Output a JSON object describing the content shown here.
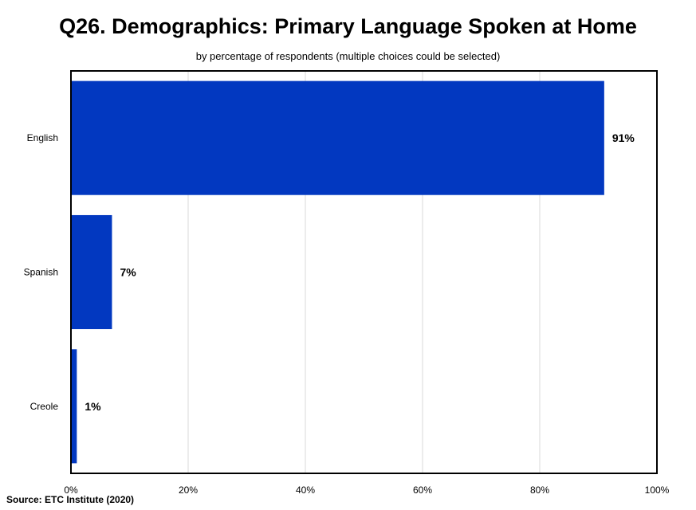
{
  "title": "Q26. Demographics: Primary Language Spoken at Home",
  "subtitle": "by percentage of respondents (multiple choices could be selected)",
  "source": "Source:  ETC Institute (2020)",
  "colors": {
    "bar": "#0238C0",
    "grid": "#d9d9d9",
    "frame": "#000000"
  },
  "chart_data": {
    "type": "bar",
    "orientation": "horizontal",
    "title": "Q26. Demographics: Primary Language Spoken at Home",
    "subtitle": "by percentage of respondents (multiple choices could be selected)",
    "categories": [
      "English",
      "Spanish",
      "Creole"
    ],
    "values": [
      91,
      7,
      1
    ],
    "data_labels": [
      "91%",
      "7%",
      "1%"
    ],
    "xlim": [
      0,
      100
    ],
    "xticks": [
      0,
      20,
      40,
      60,
      80,
      100
    ],
    "xtick_labels": [
      "0%",
      "20%",
      "40%",
      "60%",
      "80%",
      "100%"
    ],
    "grid": true,
    "legend": false,
    "xlabel": "",
    "ylabel": ""
  }
}
